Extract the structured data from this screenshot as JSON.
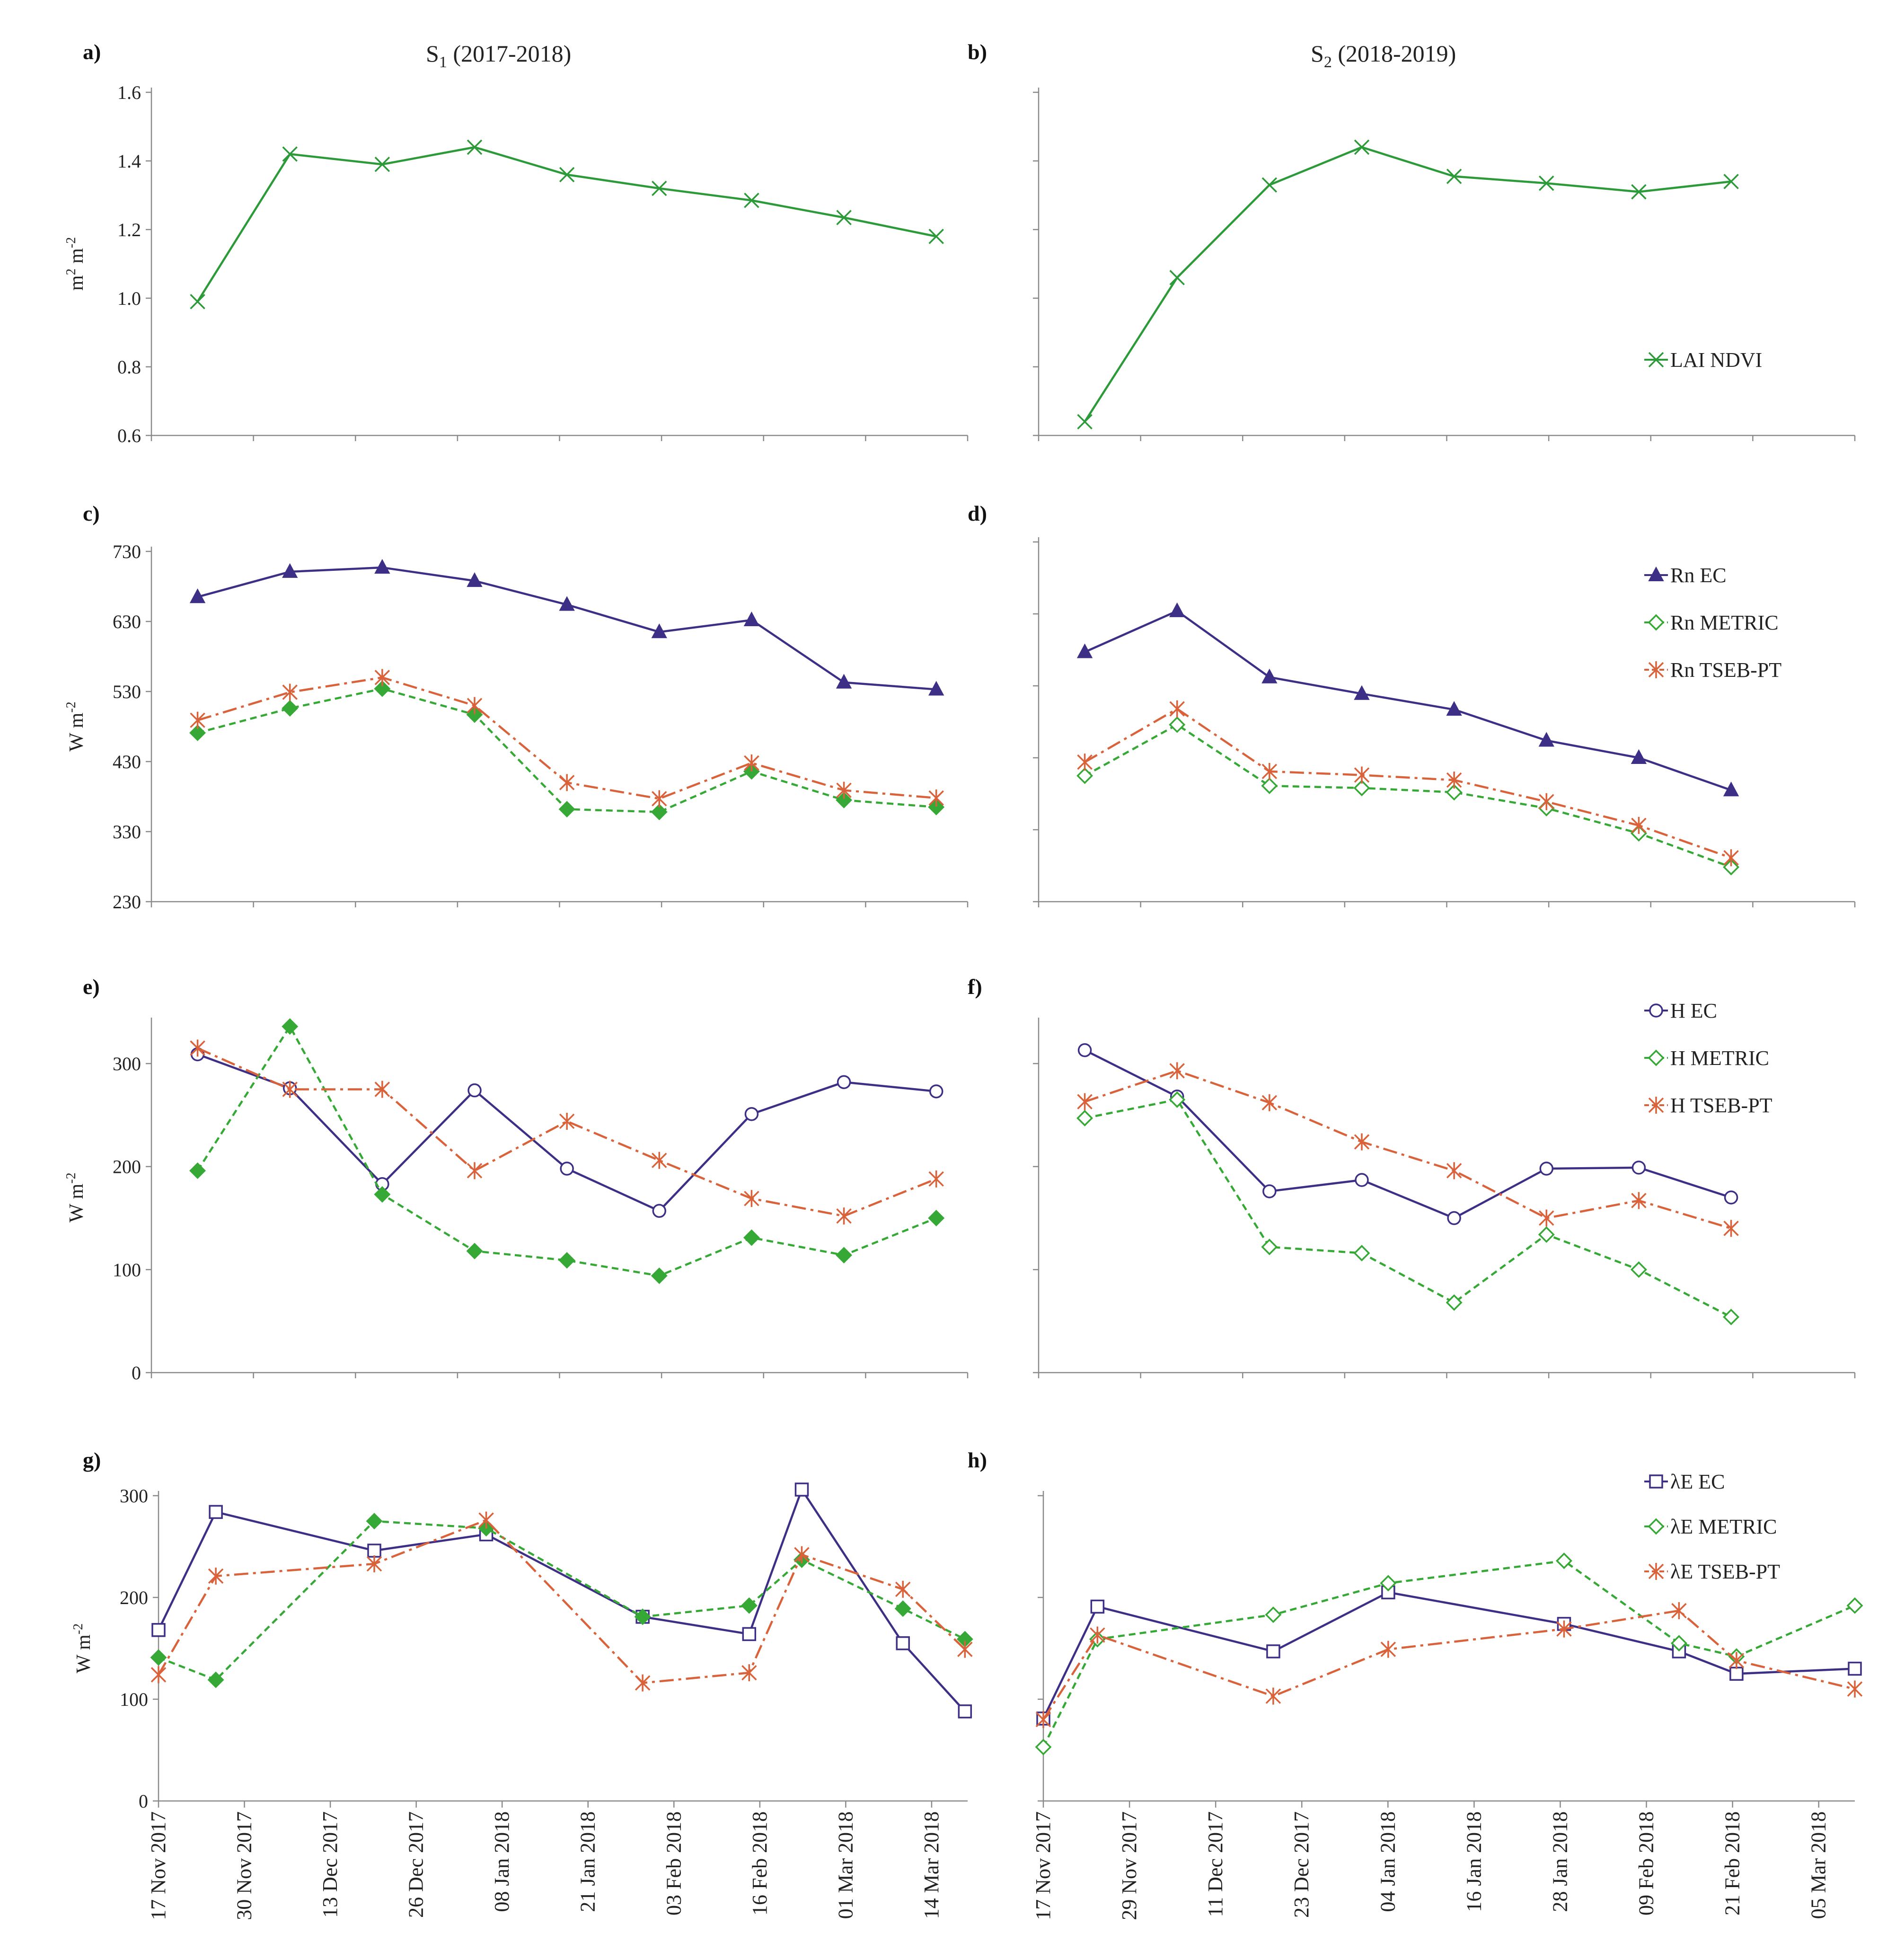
{
  "colors": {
    "ec": "#3d2f86",
    "metric": "#35a835",
    "tseb": "#d9623a",
    "lai": "#2d9a3a",
    "axis": "#8a8a8a"
  },
  "titles": {
    "s1_main": "S",
    "s1_sub": "1",
    "s1_rest": " (2017-2018)",
    "s2_main": "S",
    "s2_sub": "2",
    "s2_rest": " (2018-2019)"
  },
  "x_dates": {
    "s1": [
      "17 Nov 2017",
      "30 Nov 2017",
      "13 Dec 2017",
      "26 Dec 2017",
      "08 Jan 2018",
      "21 Jan 2018",
      "03 Feb 2018",
      "16 Feb 2018",
      "01 Mar 2018",
      "14 Mar 2018"
    ],
    "s2": [
      "17 Nov 2017",
      "29 Nov 2017",
      "11 Dec 2017",
      "23 Dec 2017",
      "04 Jan 2018",
      "16 Jan 2018",
      "28 Jan 2018",
      "09 Feb 2018",
      "21 Feb 2018",
      "05 Mar 2018"
    ]
  },
  "chart_data": [
    {
      "panel": "a)",
      "type": "line",
      "ylabel_main": "m",
      "ylabel_sup1": "2",
      "ylabel_mid": " m",
      "ylabel_sup2": "-2",
      "ylim": [
        0.6,
        1.6
      ],
      "yticks": [
        "0.6",
        "0.8",
        "1.0",
        "1.2",
        "1.4",
        "1.6"
      ],
      "show_yticks": true,
      "xn": 8,
      "series": [
        {
          "name": "LAI NDVI",
          "color": "lai",
          "marker": "x",
          "dash": "",
          "x": [
            0,
            1,
            2,
            3,
            4,
            5,
            6,
            7,
            8
          ],
          "y": [
            0.99,
            1.42,
            1.39,
            1.44,
            1.36,
            1.32,
            1.285,
            1.235,
            1.18
          ]
        }
      ]
    },
    {
      "panel": "b)",
      "type": "line",
      "ylim": [
        0.6,
        1.6
      ],
      "yticks": [
        "0.6",
        "0.8",
        "1.0",
        "1.2",
        "1.4",
        "1.6"
      ],
      "show_yticks": false,
      "xn": 8,
      "legend": [
        "LAI NDVI"
      ],
      "series": [
        {
          "name": "LAI NDVI",
          "color": "lai",
          "marker": "x",
          "dash": "",
          "x": [
            0,
            1,
            2,
            3,
            4,
            5,
            6,
            7
          ],
          "y": [
            0.64,
            1.06,
            1.33,
            1.44,
            1.355,
            1.335,
            1.31,
            1.34
          ]
        }
      ]
    },
    {
      "panel": "c)",
      "type": "line",
      "ylabel_main": "W m",
      "ylabel_sup1": "-2",
      "ylim": [
        230,
        730
      ],
      "yticks": [
        "230",
        "330",
        "430",
        "530",
        "630",
        "730"
      ],
      "show_yticks": true,
      "xn": 8,
      "series": [
        {
          "name": "Rn EC",
          "color": "ec",
          "marker": "tri",
          "dash": "",
          "x": [
            0,
            1,
            2,
            3,
            4,
            5,
            6,
            7,
            8
          ],
          "y": [
            665,
            701,
            707,
            688,
            654,
            615,
            632,
            543,
            533
          ]
        },
        {
          "name": "Rn METRIC",
          "color": "metric",
          "marker": "diamond-filled",
          "dash": "14,9",
          "x": [
            0,
            1,
            2,
            3,
            4,
            5,
            6,
            7,
            8
          ],
          "y": [
            471,
            506,
            534,
            497,
            362,
            358,
            416,
            375,
            365
          ]
        },
        {
          "name": "Rn TSEB-PT",
          "color": "tseb",
          "marker": "star",
          "dash": "30,10,6,10",
          "x": [
            0,
            1,
            2,
            3,
            4,
            5,
            6,
            7,
            8
          ],
          "y": [
            489,
            529,
            550,
            510,
            400,
            377,
            428,
            389,
            378
          ]
        }
      ]
    },
    {
      "panel": "d)",
      "type": "line",
      "ylim": [
        230,
        730
      ],
      "yticks": [
        "230",
        "330",
        "430",
        "530",
        "630",
        "730"
      ],
      "show_yticks": false,
      "xn": 8,
      "legend": [
        "Rn EC",
        "Rn METRIC",
        "Rn TSEB-PT"
      ],
      "series": [
        {
          "name": "Rn EC",
          "color": "ec",
          "marker": "tri",
          "dash": "",
          "x": [
            0,
            1,
            2,
            3,
            4,
            5,
            6,
            7
          ],
          "y": [
            577,
            634,
            542,
            519,
            497,
            454,
            430,
            385
          ]
        },
        {
          "name": "Rn METRIC",
          "color": "metric",
          "marker": "diamond-open",
          "dash": "14,9",
          "x": [
            0,
            1,
            2,
            3,
            4,
            5,
            6,
            7
          ],
          "y": [
            405,
            476,
            391,
            388,
            382,
            360,
            325,
            278
          ]
        },
        {
          "name": "Rn TSEB-PT",
          "color": "tseb",
          "marker": "star",
          "dash": "30,10,6,10",
          "x": [
            0,
            1,
            2,
            3,
            4,
            5,
            6,
            7
          ],
          "y": [
            424,
            498,
            411,
            406,
            399,
            369,
            336,
            291
          ]
        }
      ]
    },
    {
      "panel": "e)",
      "type": "line",
      "ylabel_main": "W m",
      "ylabel_sup1": "-2",
      "ylim": [
        0,
        340
      ],
      "yticks": [
        "0",
        "100",
        "200",
        "300"
      ],
      "show_yticks": true,
      "xn": 8,
      "series": [
        {
          "name": "H EC",
          "color": "ec",
          "marker": "circle",
          "dash": "",
          "x": [
            0,
            1,
            2,
            3,
            4,
            5,
            6,
            7,
            8
          ],
          "y": [
            309,
            276,
            183,
            274,
            198,
            157,
            251,
            282,
            273
          ]
        },
        {
          "name": "H METRIC",
          "color": "metric",
          "marker": "diamond-filled",
          "dash": "14,9",
          "x": [
            0,
            1,
            2,
            3,
            4,
            5,
            6,
            7,
            8
          ],
          "y": [
            196,
            336,
            173,
            118,
            109,
            94,
            131,
            114,
            150
          ]
        },
        {
          "name": "H TSEB-PT",
          "color": "tseb",
          "marker": "star",
          "dash": "30,10,6,10",
          "x": [
            0,
            1,
            2,
            3,
            4,
            5,
            6,
            7,
            8
          ],
          "y": [
            315,
            275,
            275,
            196,
            244,
            206,
            169,
            152,
            188
          ]
        }
      ]
    },
    {
      "panel": "f)",
      "type": "line",
      "ylim": [
        0,
        340
      ],
      "yticks": [
        "0",
        "100",
        "200",
        "300"
      ],
      "show_yticks": false,
      "xn": 8,
      "legend": [
        "H EC",
        "H METRIC",
        "H TSEB-PT"
      ],
      "series": [
        {
          "name": "H EC",
          "color": "ec",
          "marker": "circle",
          "dash": "",
          "x": [
            0,
            1,
            2,
            3,
            4,
            5,
            6,
            7
          ],
          "y": [
            313,
            268,
            176,
            187,
            150,
            198,
            199,
            170
          ]
        },
        {
          "name": "H METRIC",
          "color": "metric",
          "marker": "diamond-open",
          "dash": "14,9",
          "x": [
            0,
            1,
            2,
            3,
            4,
            5,
            6,
            7
          ],
          "y": [
            247,
            265,
            122,
            116,
            68,
            134,
            100,
            54
          ]
        },
        {
          "name": "H TSEB-PT",
          "color": "tseb",
          "marker": "star",
          "dash": "30,10,6,10",
          "x": [
            0,
            1,
            2,
            3,
            4,
            5,
            6,
            7
          ],
          "y": [
            263,
            293,
            262,
            224,
            196,
            150,
            167,
            140
          ]
        }
      ]
    },
    {
      "panel": "g)",
      "type": "line",
      "ylabel_main": "W m",
      "ylabel_sup1": "-2",
      "ylim": [
        0,
        300
      ],
      "yticks": [
        "0",
        "100",
        "200",
        "300"
      ],
      "show_yticks": true,
      "xn": 120,
      "series": [
        {
          "name": "λE EC",
          "color": "ec",
          "marker": "square",
          "dash": "",
          "x": [
            0,
            8.5,
            32,
            48.6,
            71.8,
            87.6,
            95.4,
            110.4,
            119.6
          ],
          "y": [
            168,
            284,
            246,
            262,
            181,
            164,
            306,
            155,
            88
          ]
        },
        {
          "name": "λE METRIC",
          "color": "metric",
          "marker": "diamond-filled",
          "dash": "14,9",
          "x": [
            0,
            8.5,
            32,
            48.6,
            71.8,
            87.6,
            95.4,
            110.4,
            119.6
          ],
          "y": [
            141,
            119,
            275,
            268,
            181,
            192,
            237,
            189,
            159
          ]
        },
        {
          "name": "λE TSEB-PT",
          "color": "tseb",
          "marker": "star",
          "dash": "30,10,6,10",
          "x": [
            0,
            8.5,
            32,
            48.6,
            71.8,
            87.6,
            95.4,
            110.4,
            119.6
          ],
          "y": [
            124,
            221,
            233,
            276,
            116,
            126,
            242,
            208,
            149
          ]
        }
      ]
    },
    {
      "panel": "h)",
      "type": "line",
      "ylim": [
        0,
        300
      ],
      "yticks": [
        "0",
        "100",
        "200",
        "300"
      ],
      "show_yticks": false,
      "xn": 120,
      "legend": [
        "λE EC",
        "λE METRIC",
        "λE TSEB-PT"
      ],
      "series": [
        {
          "name": "λE EC",
          "color": "ec",
          "marker": "square",
          "dash": "",
          "x": [
            0,
            8,
            34,
            51,
            77,
            94,
            102.5,
            120
          ],
          "y": [
            81,
            191,
            147,
            205,
            174,
            147,
            125,
            130
          ]
        },
        {
          "name": "λE METRIC",
          "color": "metric",
          "marker": "diamond-open",
          "dash": "14,9",
          "x": [
            0,
            8,
            34,
            51,
            77,
            94,
            102.5,
            120
          ],
          "y": [
            53,
            159,
            183,
            214,
            236,
            155,
            142,
            192
          ]
        },
        {
          "name": "λE TSEB-PT",
          "color": "tseb",
          "marker": "star",
          "dash": "30,10,6,10",
          "x": [
            0,
            8,
            34,
            51,
            77,
            94,
            102.5,
            120
          ],
          "y": [
            80,
            163,
            103,
            149,
            169,
            187,
            138,
            110
          ]
        }
      ]
    }
  ]
}
